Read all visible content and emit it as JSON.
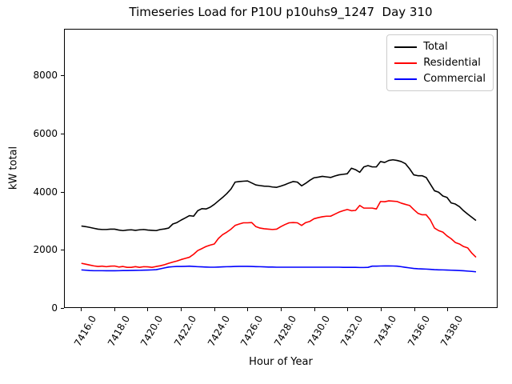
{
  "chart_data": {
    "type": "line",
    "title": "Timeseries Load for P10U p10uhs9_1247  Day 310",
    "xlabel": "Hour of Year",
    "ylabel": "kW total",
    "xlim": [
      7415.0,
      7441.0
    ],
    "ylim": [
      0,
      9608
    ],
    "grid": false,
    "legend_position": "upper right",
    "xticks": [
      7416,
      7418,
      7420,
      7422,
      7424,
      7426,
      7428,
      7430,
      7432,
      7434,
      7436,
      7438
    ],
    "xtick_labels": [
      "7416.0",
      "7418.0",
      "7420.0",
      "7422.0",
      "7424.0",
      "7426.0",
      "7428.0",
      "7430.0",
      "7432.0",
      "7434.0",
      "7436.0",
      "7438.0"
    ],
    "yticks": [
      0,
      2000,
      4000,
      6000,
      8000
    ],
    "ytick_labels": [
      "0",
      "2000",
      "4000",
      "6000",
      "8000"
    ],
    "x": [
      7416.0,
      7416.25,
      7416.5,
      7416.75,
      7417.0,
      7417.25,
      7417.5,
      7417.75,
      7418.0,
      7418.25,
      7418.5,
      7418.75,
      7419.0,
      7419.25,
      7419.5,
      7419.75,
      7420.0,
      7420.25,
      7420.5,
      7420.75,
      7421.0,
      7421.25,
      7421.5,
      7421.75,
      7422.0,
      7422.25,
      7422.5,
      7422.75,
      7423.0,
      7423.25,
      7423.5,
      7423.75,
      7424.0,
      7424.25,
      7424.5,
      7424.75,
      7425.0,
      7425.25,
      7425.5,
      7425.75,
      7426.0,
      7426.25,
      7426.5,
      7426.75,
      7427.0,
      7427.25,
      7427.5,
      7427.75,
      7428.0,
      7428.25,
      7428.5,
      7428.75,
      7429.0,
      7429.25,
      7429.5,
      7429.75,
      7430.0,
      7430.25,
      7430.5,
      7430.75,
      7431.0,
      7431.25,
      7431.5,
      7431.75,
      7432.0,
      7432.25,
      7432.5,
      7432.75,
      7433.0,
      7433.25,
      7433.5,
      7433.75,
      7434.0,
      7434.25,
      7434.5,
      7434.75,
      7435.0,
      7435.25,
      7435.5,
      7435.75,
      7436.0,
      7436.25,
      7436.5,
      7436.75,
      7437.0,
      7437.25,
      7437.5,
      7437.75,
      7438.0,
      7438.25,
      7438.5,
      7438.75,
      7439.0,
      7439.25,
      7439.5,
      7439.75
    ],
    "series": [
      {
        "name": "Total",
        "color": "#000000",
        "values": [
          2810,
          2790,
          2760,
          2730,
          2700,
          2690,
          2690,
          2700,
          2700,
          2670,
          2650,
          2670,
          2680,
          2660,
          2680,
          2690,
          2670,
          2660,
          2650,
          2690,
          2710,
          2740,
          2880,
          2930,
          3015,
          3090,
          3170,
          3150,
          3340,
          3410,
          3400,
          3460,
          3560,
          3680,
          3800,
          3935,
          4090,
          4330,
          4350,
          4360,
          4370,
          4300,
          4230,
          4210,
          4190,
          4185,
          4160,
          4150,
          4190,
          4240,
          4300,
          4350,
          4330,
          4200,
          4290,
          4395,
          4480,
          4500,
          4530,
          4510,
          4490,
          4540,
          4580,
          4600,
          4620,
          4810,
          4760,
          4670,
          4855,
          4900,
          4855,
          4855,
          5040,
          5010,
          5080,
          5100,
          5080,
          5040,
          4970,
          4790,
          4580,
          4550,
          4550,
          4490,
          4260,
          4030,
          3980,
          3850,
          3800,
          3610,
          3570,
          3480,
          3340,
          3220,
          3110,
          3000
        ]
      },
      {
        "name": "Residential",
        "color": "#ff0000",
        "values": [
          1520,
          1490,
          1460,
          1430,
          1410,
          1420,
          1400,
          1420,
          1425,
          1390,
          1410,
          1380,
          1380,
          1405,
          1380,
          1400,
          1395,
          1380,
          1410,
          1435,
          1470,
          1520,
          1560,
          1600,
          1650,
          1690,
          1730,
          1830,
          1960,
          2030,
          2100,
          2150,
          2190,
          2380,
          2510,
          2600,
          2700,
          2830,
          2880,
          2920,
          2920,
          2930,
          2790,
          2740,
          2715,
          2700,
          2690,
          2700,
          2790,
          2860,
          2920,
          2930,
          2920,
          2830,
          2930,
          2970,
          3060,
          3100,
          3130,
          3150,
          3150,
          3220,
          3290,
          3340,
          3380,
          3340,
          3350,
          3520,
          3430,
          3430,
          3430,
          3400,
          3660,
          3650,
          3680,
          3670,
          3660,
          3600,
          3560,
          3520,
          3380,
          3250,
          3200,
          3200,
          3020,
          2740,
          2650,
          2600,
          2470,
          2370,
          2240,
          2190,
          2100,
          2050,
          1870,
          1730
        ]
      },
      {
        "name": "Commercial",
        "color": "#0000ff",
        "values": [
          1290,
          1280,
          1270,
          1265,
          1265,
          1263,
          1262,
          1262,
          1262,
          1265,
          1268,
          1270,
          1272,
          1275,
          1278,
          1282,
          1285,
          1290,
          1300,
          1330,
          1360,
          1390,
          1400,
          1410,
          1410,
          1415,
          1420,
          1410,
          1400,
          1395,
          1390,
          1385,
          1385,
          1390,
          1395,
          1400,
          1405,
          1410,
          1415,
          1415,
          1415,
          1410,
          1405,
          1400,
          1395,
          1390,
          1390,
          1385,
          1385,
          1385,
          1385,
          1385,
          1385,
          1385,
          1385,
          1385,
          1385,
          1385,
          1385,
          1385,
          1385,
          1385,
          1385,
          1380,
          1380,
          1380,
          1380,
          1375,
          1375,
          1380,
          1420,
          1420,
          1425,
          1430,
          1430,
          1425,
          1420,
          1400,
          1380,
          1360,
          1340,
          1330,
          1325,
          1320,
          1310,
          1300,
          1295,
          1290,
          1285,
          1280,
          1275,
          1270,
          1260,
          1250,
          1240,
          1225
        ]
      }
    ]
  }
}
